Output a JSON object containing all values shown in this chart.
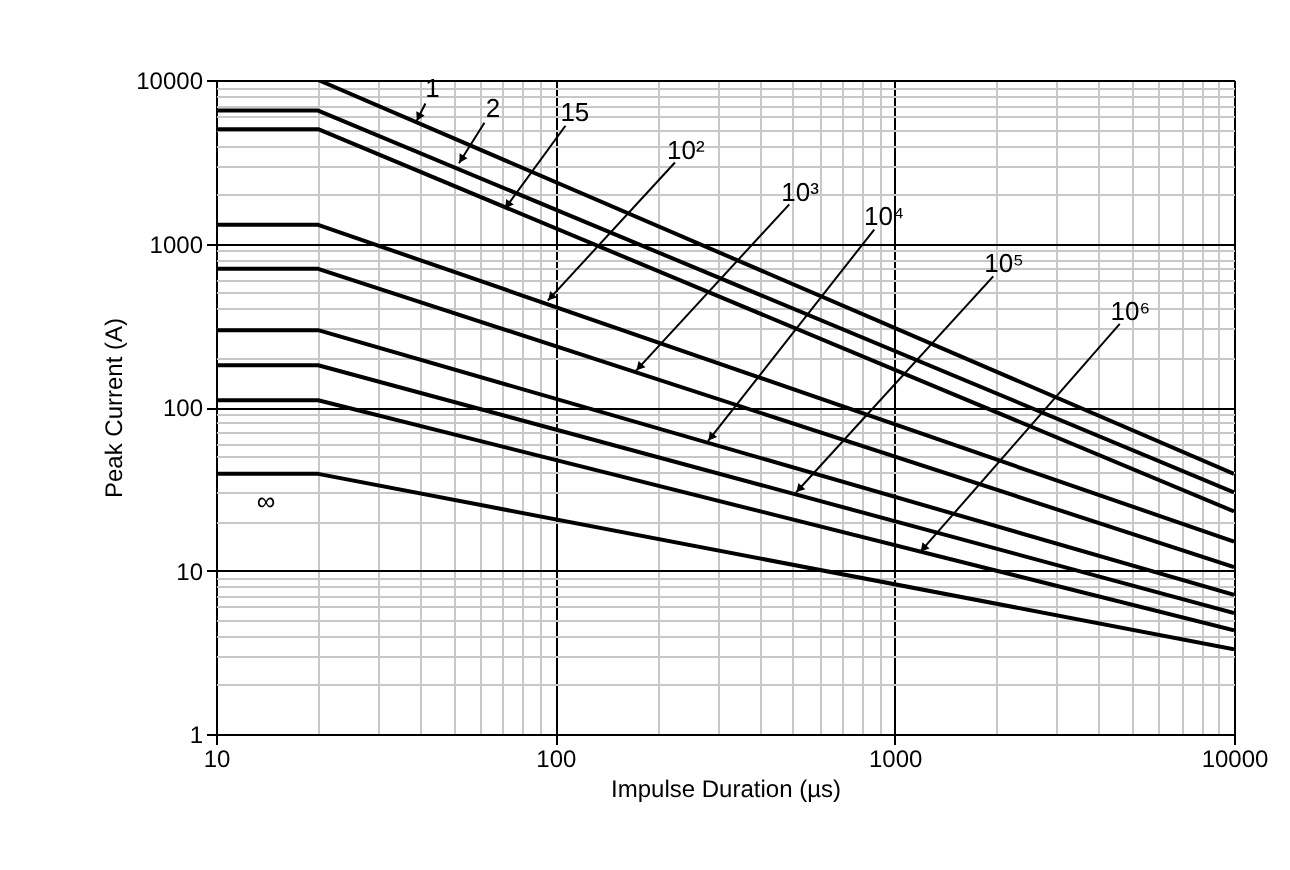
{
  "chart_data": {
    "type": "line",
    "xlabel": "Impulse Duration (µs)",
    "ylabel": "Peak Current (A)",
    "x": [
      10,
      20,
      10000
    ],
    "series": [
      {
        "color": "#000000",
        "values": [
          10000,
          10000,
          39
        ]
      },
      {
        "color": "#000000",
        "values": [
          6500,
          6500,
          30
        ]
      },
      {
        "color": "#000000",
        "values": [
          5000,
          5000,
          23
        ]
      },
      {
        "color": "#000000",
        "values": [
          1300,
          1300,
          15
        ]
      },
      {
        "color": "#000000",
        "values": [
          700,
          700,
          10.5
        ]
      },
      {
        "color": "#000000",
        "values": [
          295,
          295,
          7.1
        ]
      },
      {
        "color": "#000000",
        "values": [
          180,
          180,
          5.5
        ]
      },
      {
        "color": "#000000",
        "values": [
          110,
          110,
          4.3
        ]
      },
      {
        "name": "∞",
        "color": "#000000",
        "values": [
          39,
          39,
          3.3
        ]
      }
    ],
    "annotations": [
      {
        "text": "1",
        "x": 39,
        "y": 5600
      },
      {
        "text": "2",
        "x": 52,
        "y": 3100
      },
      {
        "text": "15",
        "x": 71,
        "y": 1630
      },
      {
        "text": "10²",
        "x": 95,
        "y": 447
      },
      {
        "text": "10³",
        "x": 173,
        "y": 167
      },
      {
        "text": "10⁴",
        "x": 282,
        "y": 62
      },
      {
        "text": "10⁵",
        "x": 512,
        "y": 30
      },
      {
        "text": "10⁶",
        "x": 1190,
        "y": 13
      }
    ],
    "log": "xy",
    "xlim": [
      10,
      10000
    ],
    "ylim": [
      1,
      10000
    ],
    "xticks": [
      10,
      {
        "value": 20,
        "label": null
      },
      {
        "value": 30,
        "label": null
      },
      {
        "value": 40,
        "label": null
      },
      {
        "value": 50,
        "label": null
      },
      {
        "value": 60,
        "label": null
      },
      {
        "value": 70,
        "label": null
      },
      {
        "value": 80,
        "label": null
      },
      {
        "value": 90,
        "label": null
      },
      100,
      {
        "value": 200,
        "label": null
      },
      {
        "value": 300,
        "label": null
      },
      {
        "value": 400,
        "label": null
      },
      {
        "value": 500,
        "label": null
      },
      {
        "value": 600,
        "label": null
      },
      {
        "value": 700,
        "label": null
      },
      {
        "value": 800,
        "label": null
      },
      {
        "value": 900,
        "label": null
      },
      1000,
      {
        "value": 2000,
        "label": null
      },
      {
        "value": 3000,
        "label": null
      },
      {
        "value": 4000,
        "label": null
      },
      {
        "value": 5000,
        "label": null
      },
      {
        "value": 6000,
        "label": null
      },
      {
        "value": 7000,
        "label": null
      },
      {
        "value": 8000,
        "label": null
      },
      {
        "value": 9000,
        "label": null
      },
      10000
    ],
    "yticks": [
      1,
      {
        "value": 2,
        "label": null
      },
      {
        "value": 3,
        "label": null
      },
      {
        "value": 4,
        "label": null
      },
      {
        "value": 5,
        "label": null
      },
      {
        "value": 6,
        "label": null
      },
      {
        "value": 7,
        "label": null
      },
      {
        "value": 8,
        "label": null
      },
      {
        "value": 9,
        "label": null
      },
      10,
      {
        "value": 20,
        "label": null
      },
      {
        "value": 30,
        "label": null
      },
      {
        "value": 40,
        "label": null
      },
      {
        "value": 50,
        "label": null
      },
      {
        "value": 60,
        "label": null
      },
      {
        "value": 70,
        "label": null
      },
      {
        "value": 80,
        "label": null
      },
      {
        "value": 90,
        "label": null
      },
      100,
      {
        "value": 200,
        "label": null
      },
      {
        "value": 300,
        "label": null
      },
      {
        "value": 400,
        "label": null
      },
      {
        "value": 500,
        "label": null
      },
      {
        "value": 600,
        "label": null
      },
      {
        "value": 700,
        "label": null
      },
      {
        "value": 800,
        "label": null
      },
      {
        "value": 900,
        "label": null
      },
      1000,
      {
        "value": 2000,
        "label": null
      },
      {
        "value": 3000,
        "label": null
      },
      {
        "value": 4000,
        "label": null
      },
      {
        "value": 5000,
        "label": null
      },
      {
        "value": 6000,
        "label": null
      },
      {
        "value": 7000,
        "label": null
      },
      {
        "value": 8000,
        "label": null
      },
      {
        "value": 9000,
        "label": null
      },
      10000
    ],
    "grid": true,
    "legend": false,
    "marker": "none",
    "line_style": "solid"
  }
}
